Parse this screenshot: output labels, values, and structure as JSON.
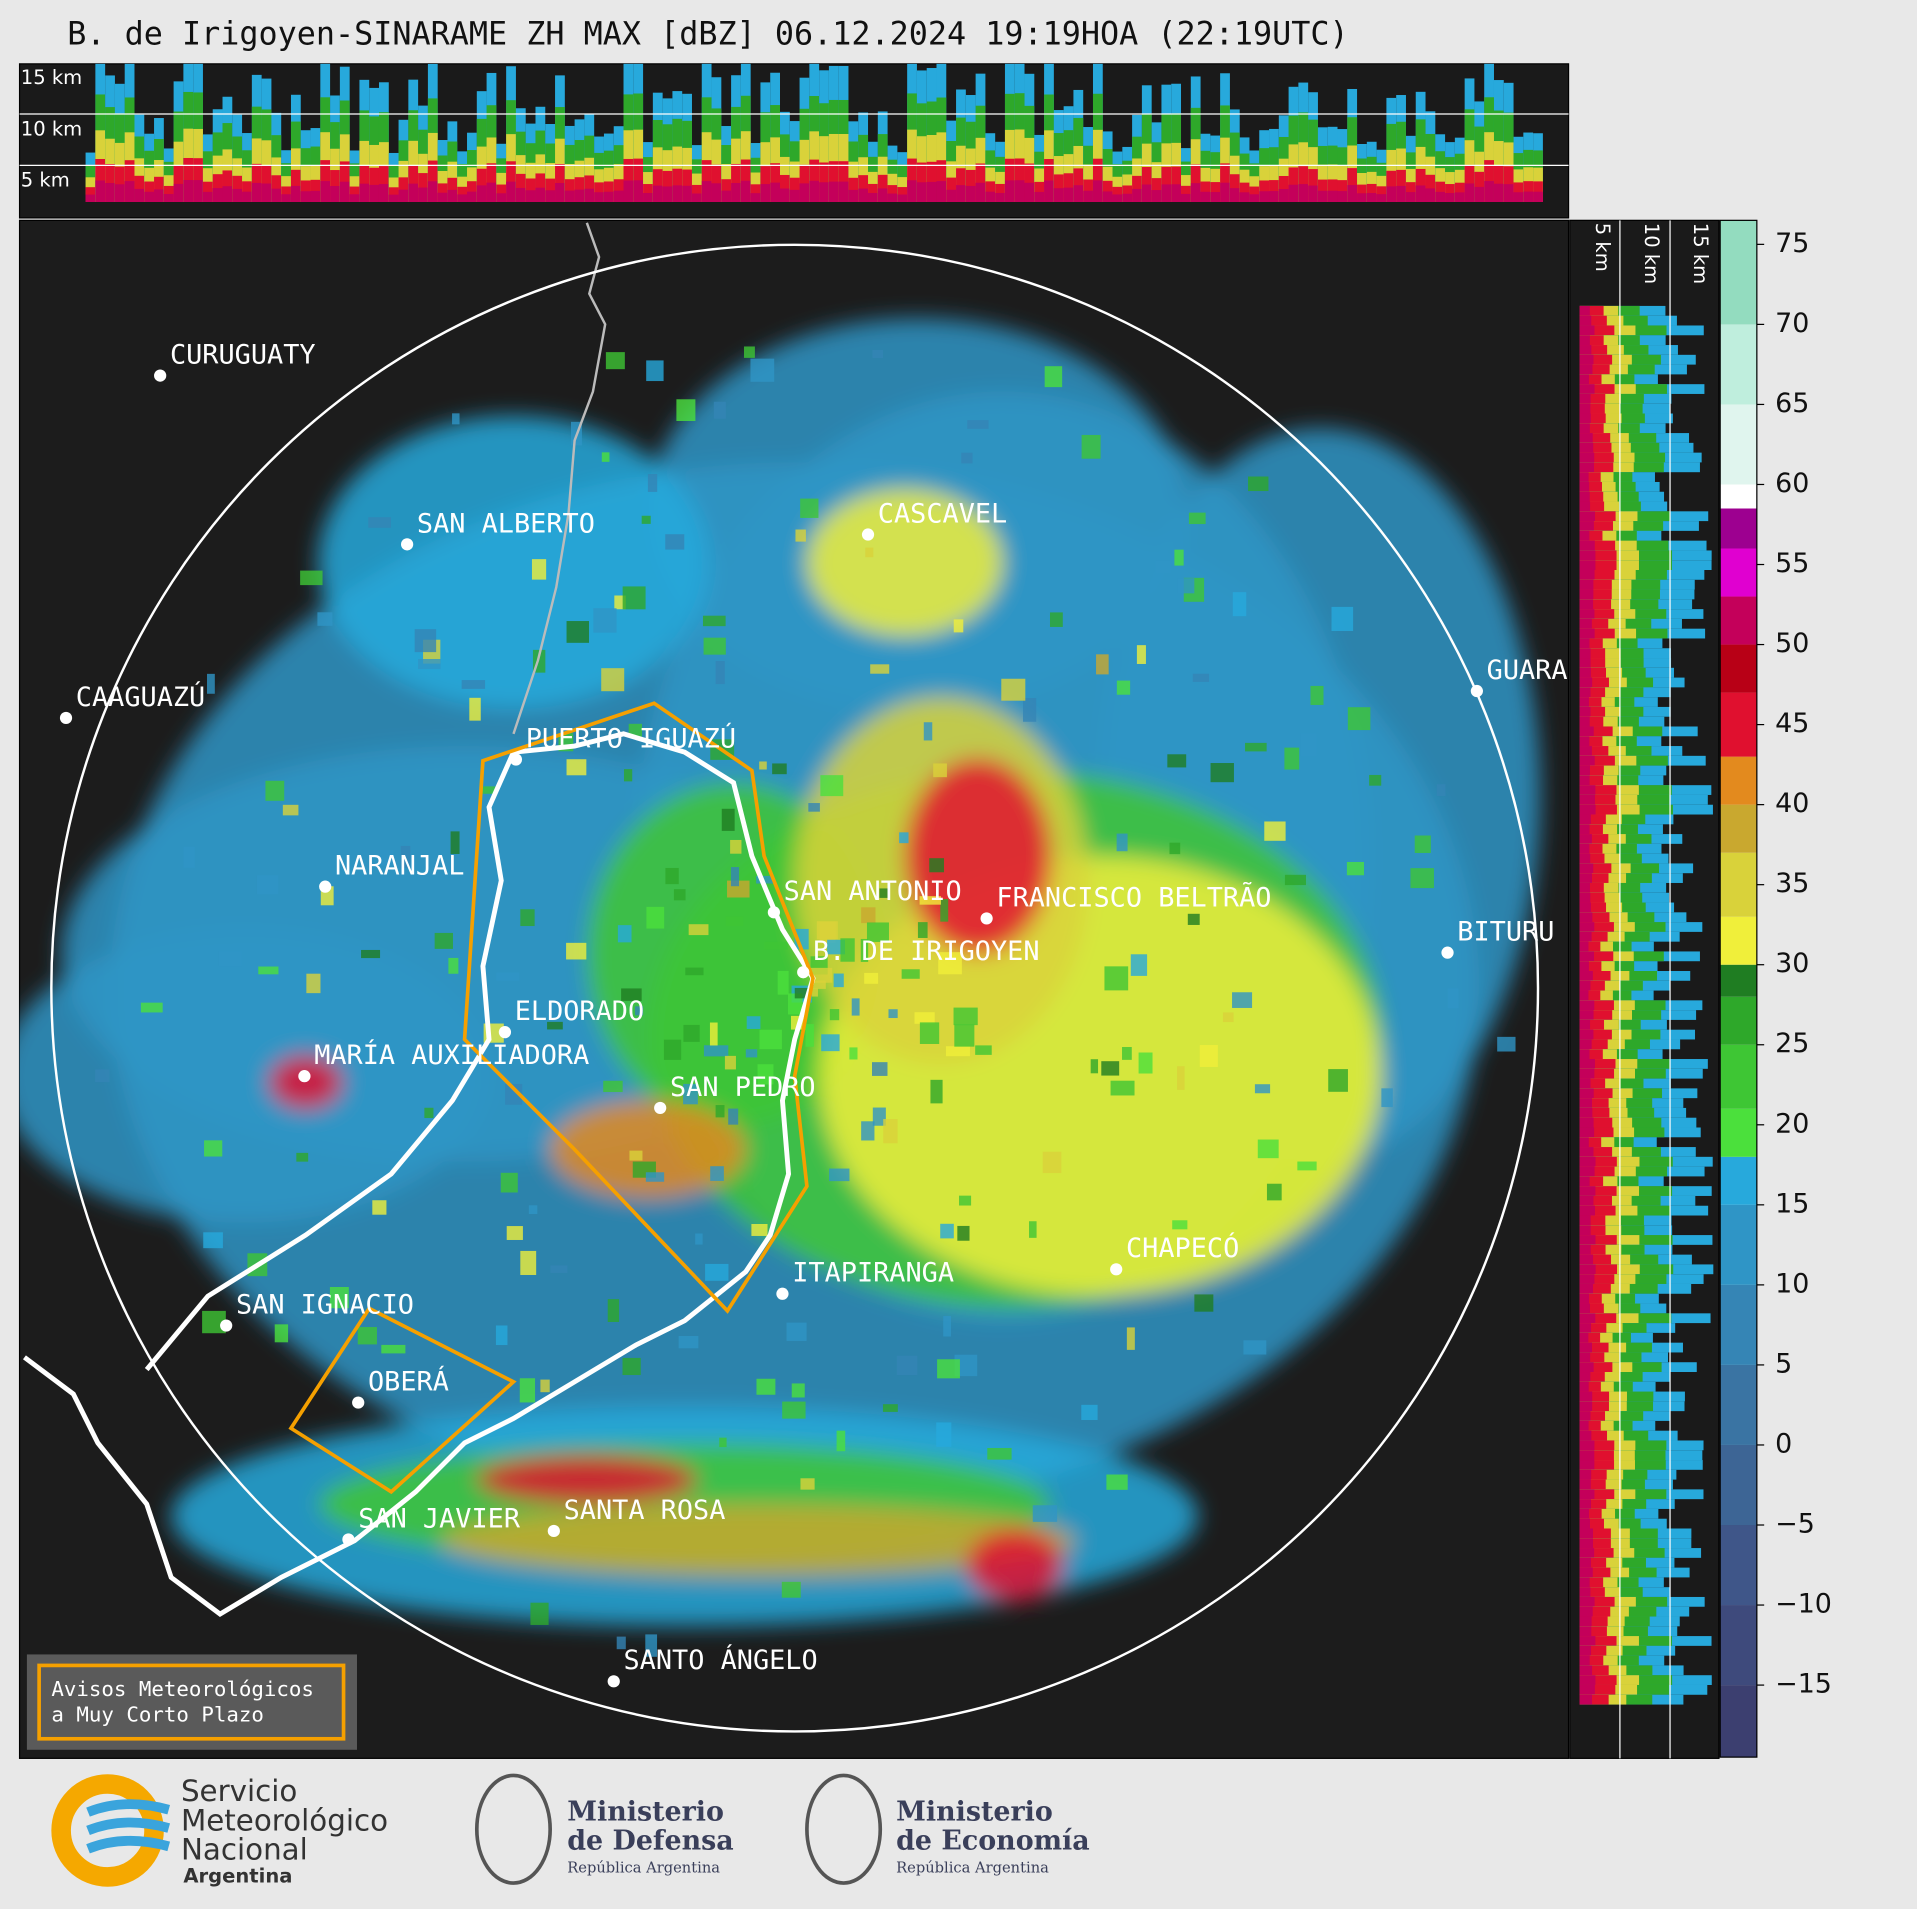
{
  "header": {
    "title": "B. de Irigoyen-SINARAME ZH MAX [dBZ] 06.12.2024 19:19HOA (22:19UTC)"
  },
  "top_strip": {
    "labels": [
      "15 km",
      "10 km",
      "5 km"
    ]
  },
  "side_strip": {
    "labels": [
      "5 km",
      "10 km",
      "15 km"
    ]
  },
  "places": [
    {
      "name": "CURUGUATY"
    },
    {
      "name": "SAN ALBERTO"
    },
    {
      "name": "CAAGUAZÚ"
    },
    {
      "name": "PUERTO IGUAZÚ"
    },
    {
      "name": "CASCAVEL"
    },
    {
      "name": "GUARA"
    },
    {
      "name": "NARANJAL"
    },
    {
      "name": "SAN ANTONIO"
    },
    {
      "name": "FRANCISCO BELTRÃO"
    },
    {
      "name": "B. DE IRIGOYEN"
    },
    {
      "name": "BITURU"
    },
    {
      "name": "ELDORADO"
    },
    {
      "name": "MARÍA AUXILIADORA"
    },
    {
      "name": "SAN PEDRO"
    },
    {
      "name": "ITAPIRANGA"
    },
    {
      "name": "CHAPECÓ"
    },
    {
      "name": "SAN IGNACIO"
    },
    {
      "name": "OBERÁ"
    },
    {
      "name": "SAN JAVIER"
    },
    {
      "name": "SANTA ROSA"
    },
    {
      "name": "SANTO ÁNGELO"
    }
  ],
  "warning_box": {
    "lines": [
      "Avisos Meteorológicos",
      "a Muy Corto Plazo"
    ]
  },
  "colorbar": {
    "lim": [
      -19.5,
      76.5
    ],
    "ticks": [
      75,
      70,
      65,
      60,
      55,
      50,
      45,
      40,
      35,
      30,
      25,
      20,
      15,
      10,
      5,
      0,
      {
        "value": -5,
        "label": "−5"
      },
      {
        "value": -10,
        "label": "−10"
      },
      {
        "value": -15,
        "label": "−15"
      }
    ],
    "bands": [
      {
        "from": -19.5,
        "to": -15,
        "color": "#3c3f70"
      },
      {
        "from": -15,
        "to": -10,
        "color": "#3e4a7c"
      },
      {
        "from": -10,
        "to": -5,
        "color": "#3f5689"
      },
      {
        "from": -5,
        "to": 0,
        "color": "#3d6595"
      },
      {
        "from": 0,
        "to": 5,
        "color": "#3a74a3"
      },
      {
        "from": 5,
        "to": 10,
        "color": "#3585b5"
      },
      {
        "from": 10,
        "to": 15,
        "color": "#2f95c6"
      },
      {
        "from": 15,
        "to": 18,
        "color": "#27a9dc"
      },
      {
        "from": 18,
        "to": 21,
        "color": "#4be03c"
      },
      {
        "from": 21,
        "to": 25,
        "color": "#3ec634"
      },
      {
        "from": 25,
        "to": 28,
        "color": "#2ea82a"
      },
      {
        "from": 28,
        "to": 30,
        "color": "#1f7d22"
      },
      {
        "from": 30,
        "to": 33,
        "color": "#f0ef3a"
      },
      {
        "from": 33,
        "to": 37,
        "color": "#d9d23a"
      },
      {
        "from": 37,
        "to": 40,
        "color": "#c9a82f"
      },
      {
        "from": 40,
        "to": 43,
        "color": "#e38a1e"
      },
      {
        "from": 43,
        "to": 47,
        "color": "#e0102f"
      },
      {
        "from": 47,
        "to": 50,
        "color": "#b80016"
      },
      {
        "from": 50,
        "to": 53,
        "color": "#c4005a"
      },
      {
        "from": 53,
        "to": 56,
        "color": "#e000d0"
      },
      {
        "from": 56,
        "to": 58.5,
        "color": "#9d0090"
      },
      {
        "from": 58.5,
        "to": 60,
        "color": "#ffffff"
      },
      {
        "from": 60,
        "to": 65,
        "color": "#e0f5ee"
      },
      {
        "from": 65,
        "to": 70,
        "color": "#bfeedd"
      },
      {
        "from": 70,
        "to": 76.5,
        "color": "#93dcbf"
      }
    ]
  },
  "logos": {
    "smn": [
      "Servicio",
      "Meteorológico",
      "Nacional",
      "Argentina"
    ],
    "defensa": [
      "Ministerio",
      "de Defensa",
      "República Argentina"
    ],
    "economia": [
      "Ministerio",
      "de Economía",
      "República Argentina"
    ]
  }
}
